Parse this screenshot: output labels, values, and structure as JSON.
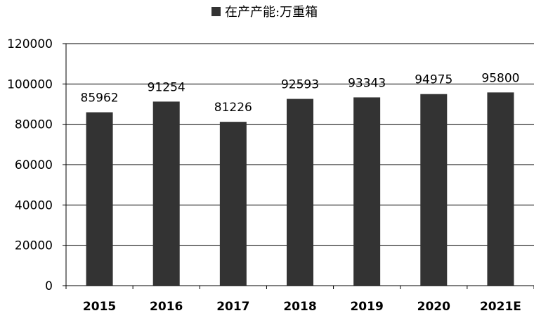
{
  "chart_data": {
    "type": "bar",
    "categories": [
      "2015",
      "2016",
      "2017",
      "2018",
      "2019",
      "2020",
      "2021E"
    ],
    "series": [
      {
        "name": "在产产能:万重箱",
        "values": [
          85962,
          91254,
          81226,
          92593,
          93343,
          94975,
          95800
        ],
        "color": "#333333"
      }
    ],
    "data_labels": [
      "85962",
      "91254",
      "81226",
      "92593",
      "93343",
      "94975",
      "95800"
    ],
    "y_ticks": [
      "0",
      "20000",
      "40000",
      "60000",
      "80000",
      "100000",
      "120000"
    ],
    "ylim": [
      0,
      120000
    ],
    "grid": true,
    "legend_position": "top-center",
    "title": "",
    "xlabel": "",
    "ylabel": ""
  }
}
